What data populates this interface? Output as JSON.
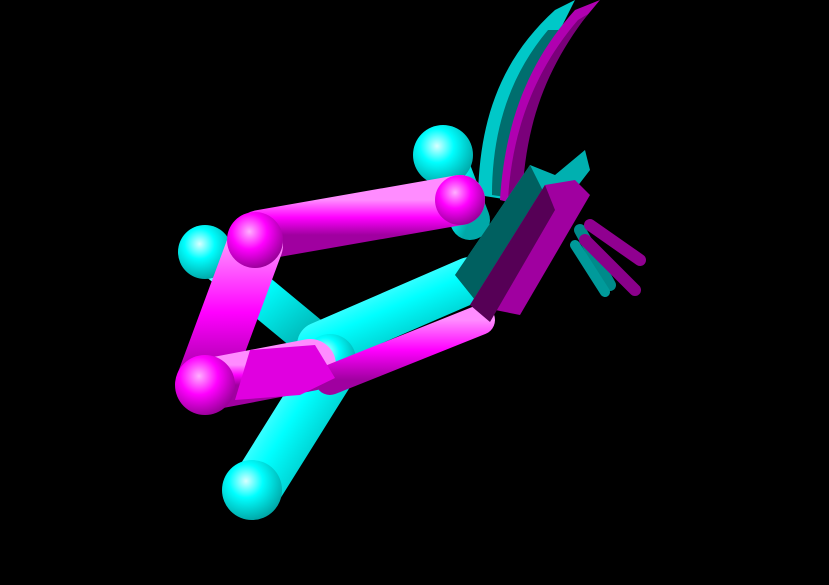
{
  "scene": {
    "background": "#000000",
    "colors": {
      "cyan": "#00ffff",
      "cyan_shadow": "#007a7a",
      "magenta": "#ff00ff",
      "magenta_shadow": "#8a008a",
      "magenta_dark": "#5a005a"
    },
    "models": [
      {
        "name": "cyan-structure",
        "color": "#00ffff"
      },
      {
        "name": "magenta-structure",
        "color": "#ff00ff"
      }
    ]
  }
}
